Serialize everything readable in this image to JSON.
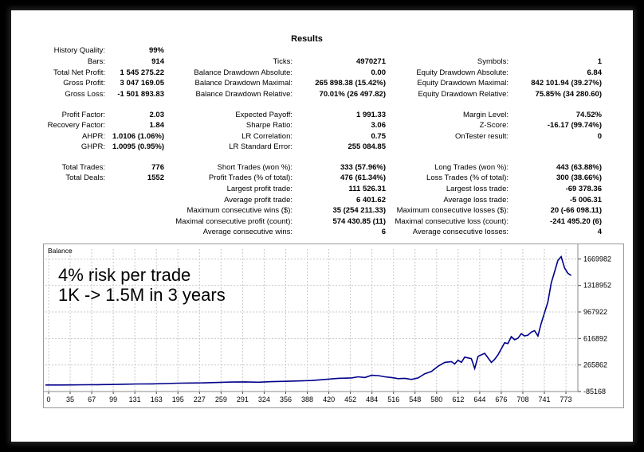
{
  "report": {
    "title": "Results",
    "rows": [
      {
        "top": 45,
        "items": [
          [
            "History Quality:",
            "99%"
          ]
        ]
      },
      {
        "top": 59,
        "items": [
          [
            "Bars:",
            "914"
          ],
          [
            "Ticks:",
            "4970271"
          ],
          [
            "Symbols:",
            "1"
          ]
        ]
      },
      {
        "top": 73,
        "items": [
          [
            "Total Net Profit:",
            "1 545 275.22"
          ],
          [
            "Balance Drawdown Absolute:",
            "0.00"
          ],
          [
            "Equity Drawdown Absolute:",
            "6.84"
          ]
        ]
      },
      {
        "top": 86,
        "items": [
          [
            "Gross Profit:",
            "3 047 169.05"
          ],
          [
            "Balance Drawdown Maximal:",
            "265 898.38 (15.42%)"
          ],
          [
            "Equity Drawdown Maximal:",
            "842 101.94 (39.27%)"
          ]
        ]
      },
      {
        "top": 100,
        "items": [
          [
            "Gross Loss:",
            "-1 501 893.83"
          ],
          [
            "Balance Drawdown Relative:",
            "70.01% (26 497.82)"
          ],
          [
            "Equity Drawdown Relative:",
            "75.85% (34 280.60)"
          ]
        ]
      },
      {
        "top": 126,
        "items": [
          [
            "Profit Factor:",
            "2.03"
          ],
          [
            "Expected Payoff:",
            "1 991.33"
          ],
          [
            "Margin Level:",
            "74.52%"
          ]
        ]
      },
      {
        "top": 139,
        "items": [
          [
            "Recovery Factor:",
            "1.84"
          ],
          [
            "Sharpe Ratio:",
            "3.06"
          ],
          [
            "Z-Score:",
            "-16.17 (99.74%)"
          ]
        ]
      },
      {
        "top": 153,
        "items": [
          [
            "AHPR:",
            "1.0106 (1.06%)"
          ],
          [
            "LR Correlation:",
            "0.75"
          ],
          [
            "OnTester result:",
            "0"
          ]
        ]
      },
      {
        "top": 166,
        "items": [
          [
            "GHPR:",
            "1.0095 (0.95%)"
          ],
          [
            "LR Standard Error:",
            "255 084.85"
          ]
        ]
      },
      {
        "top": 192,
        "items": [
          [
            "Total Trades:",
            "776"
          ],
          [
            "Short Trades (won %):",
            "333 (57.96%)"
          ],
          [
            "Long Trades (won %):",
            "443 (63.88%)"
          ]
        ]
      },
      {
        "top": 205,
        "items": [
          [
            "Total Deals:",
            "1552"
          ],
          [
            "Profit Trades (% of total):",
            "476 (61.34%)"
          ],
          [
            "Loss Trades (% of total):",
            "300 (38.66%)"
          ]
        ]
      },
      {
        "top": 219,
        "items": [
          null,
          [
            "Largest profit trade:",
            "111 526.31"
          ],
          [
            "Largest loss trade:",
            "-69 378.36"
          ]
        ]
      },
      {
        "top": 233,
        "items": [
          null,
          [
            "Average profit trade:",
            "6 401.62"
          ],
          [
            "Average loss trade:",
            "-5 006.31"
          ]
        ]
      },
      {
        "top": 246,
        "items": [
          null,
          [
            "Maximum consecutive wins ($):",
            "35 (254 211.33)"
          ],
          [
            "Maximum consecutive losses ($):",
            "20 (-66 098.11)"
          ]
        ]
      },
      {
        "top": 260,
        "items": [
          null,
          [
            "Maximal consecutive profit (count):",
            "574 430.85 (11)"
          ],
          [
            "Maximal consecutive loss (count):",
            "-241 495.20 (6)"
          ]
        ]
      },
      {
        "top": 273,
        "items": [
          null,
          [
            "Average consecutive wins:",
            "6"
          ],
          [
            "Average consecutive losses:",
            "4"
          ]
        ]
      }
    ]
  },
  "chart_data": {
    "type": "line",
    "title": "Balance",
    "annotation": [
      "4% risk per trade",
      "1K -> 1.5M in 3 years"
    ],
    "xlabel": "",
    "ylabel": "",
    "x_ticks": [
      0,
      35,
      67,
      99,
      131,
      163,
      195,
      227,
      259,
      291,
      324,
      356,
      388,
      420,
      452,
      484,
      516,
      548,
      580,
      612,
      644,
      676,
      708,
      741,
      773
    ],
    "y_ticks": [
      "1669982",
      "1318952",
      "967922",
      "616892",
      "265862",
      "-85168"
    ],
    "y_tick_values": [
      1669982,
      1318952,
      967922,
      616892,
      265862,
      -85168
    ],
    "xlim": [
      0,
      800
    ],
    "ylim": [
      -85168,
      1800000
    ],
    "grid": true,
    "series": [
      {
        "color": "#00008b",
        "x": [
          0,
          20,
          40,
          60,
          80,
          100,
          120,
          140,
          160,
          180,
          200,
          220,
          240,
          260,
          280,
          300,
          320,
          340,
          360,
          380,
          400,
          420,
          440,
          460,
          470,
          480,
          490,
          500,
          510,
          520,
          530,
          540,
          550,
          560,
          570,
          580,
          590,
          600,
          610,
          615,
          620,
          625,
          630,
          640,
          645,
          650,
          660,
          670,
          675,
          680,
          690,
          695,
          700,
          705,
          710,
          715,
          720,
          725,
          730,
          735,
          740,
          745,
          750,
          755,
          760,
          765,
          770,
          775,
          780,
          785,
          790
        ],
        "y": [
          1000,
          1200,
          2500,
          4000,
          5000,
          8000,
          12000,
          15000,
          16000,
          20000,
          25000,
          28000,
          30000,
          35000,
          40000,
          42000,
          38000,
          45000,
          50000,
          55000,
          60000,
          75000,
          90000,
          95000,
          110000,
          100000,
          130000,
          125000,
          110000,
          100000,
          85000,
          90000,
          75000,
          95000,
          150000,
          180000,
          250000,
          300000,
          310000,
          280000,
          330000,
          300000,
          370000,
          350000,
          220000,
          380000,
          420000,
          300000,
          340000,
          400000,
          560000,
          550000,
          640000,
          600000,
          620000,
          680000,
          650000,
          660000,
          700000,
          720000,
          650000,
          820000,
          960000,
          1100000,
          1350000,
          1500000,
          1650000,
          1700000,
          1550000,
          1480000,
          1450000
        ]
      }
    ]
  }
}
